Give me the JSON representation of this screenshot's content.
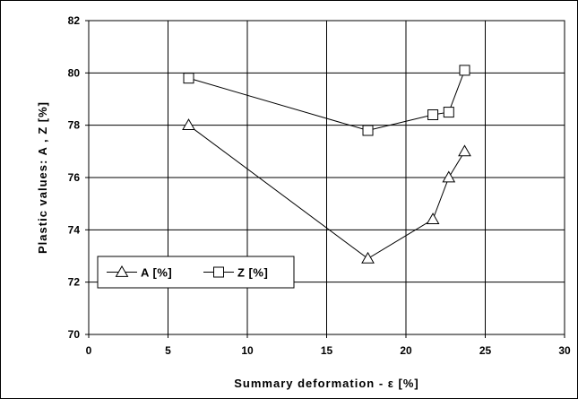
{
  "chart_data": {
    "type": "line",
    "xlabel": "Summary deformation - ε [%]",
    "ylabel": "Plastic values: A , Z [%]",
    "xlim": [
      0,
      30
    ],
    "ylim": [
      70,
      82
    ],
    "x_ticks": [
      0,
      5,
      10,
      15,
      20,
      25,
      30
    ],
    "y_ticks": [
      70,
      72,
      74,
      76,
      78,
      80,
      82
    ],
    "grid": true,
    "legend_placement": "bottom-left",
    "series": [
      {
        "name": "A [%]",
        "marker": "triangle",
        "color": "#000000",
        "x": [
          6.3,
          17.6,
          21.7,
          22.7,
          23.7
        ],
        "y": [
          78.0,
          72.9,
          74.4,
          76.0,
          77.0
        ]
      },
      {
        "name": "Z [%]",
        "marker": "square",
        "color": "#000000",
        "x": [
          6.3,
          17.6,
          21.7,
          22.7,
          23.7
        ],
        "y": [
          79.8,
          77.8,
          78.4,
          78.5,
          80.1
        ]
      }
    ]
  }
}
